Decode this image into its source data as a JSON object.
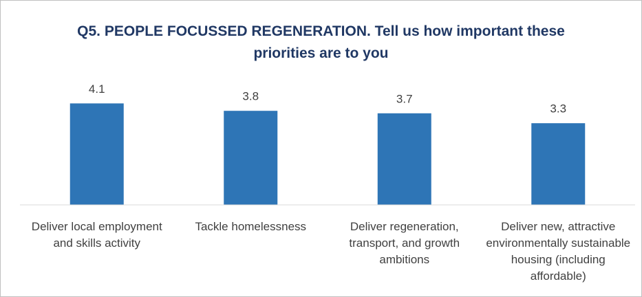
{
  "chart_data": {
    "type": "bar",
    "title": "Q5. PEOPLE FOCUSSED REGENERATION. Tell us how important these priorities are to you",
    "categories": [
      "Deliver local employment and skills activity",
      "Tackle homelessness",
      "Deliver regeneration, transport, and growth ambitions",
      "Deliver new, attractive environmentally sustainable housing (including affordable)"
    ],
    "values": [
      4.1,
      3.8,
      3.7,
      3.3
    ],
    "color": "#2e75b6",
    "ylim": [
      0,
      5
    ]
  }
}
